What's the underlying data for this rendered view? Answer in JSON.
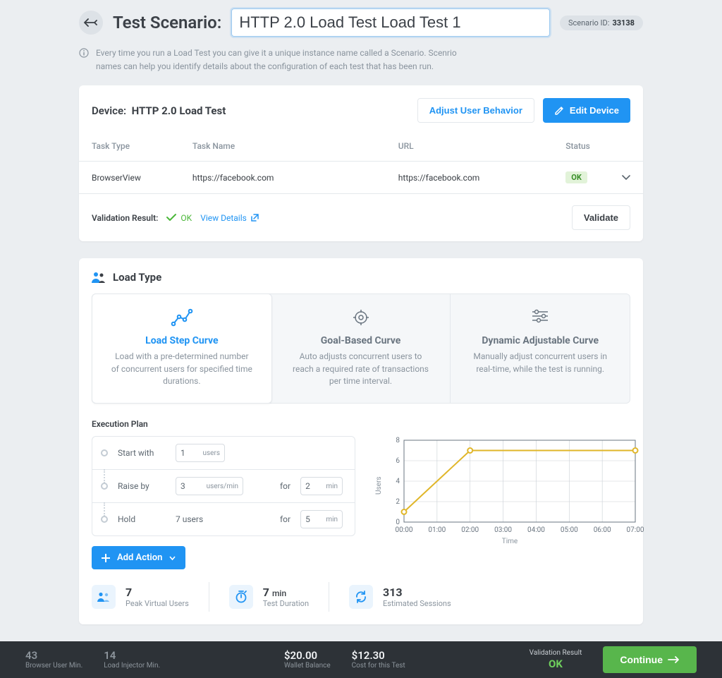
{
  "header": {
    "title_label": "Test Scenario:",
    "input_value": "HTTP 2.0 Load Test Load Test 1",
    "scenario_id_label": "Scenario ID:",
    "scenario_id": "33138",
    "info_text": "Every time you run a Load Test you can give it a unique instance name called a Scenario. Scenrio names can help you identify details about the configuration of each test that has been run."
  },
  "device_card": {
    "device_label": "Device:",
    "device_name": "HTTP 2.0 Load Test",
    "adjust_btn": "Adjust User Behavior",
    "edit_btn": "Edit Device",
    "columns": {
      "type": "Task Type",
      "name": "Task Name",
      "url": "URL",
      "status": "Status"
    },
    "row": {
      "type": "BrowserView",
      "name": "https://facebook.com",
      "url": "https://facebook.com",
      "status": "OK"
    },
    "validation_label": "Validation Result:",
    "validation_ok": "OK",
    "view_details": "View Details",
    "validate_btn": "Validate"
  },
  "load_type": {
    "title": "Load Type",
    "options": [
      {
        "t": "Load Step Curve",
        "d": "Load with a pre-determined number of concurrent users for specified time durations."
      },
      {
        "t": "Goal-Based Curve",
        "d": "Auto adjusts concurrent users to reach a required rate of transactions per time interval."
      },
      {
        "t": "Dynamic Adjustable Curve",
        "d": "Manually adjust concurrent users in real-time, while the test is running."
      }
    ],
    "exec_label": "Execution Plan",
    "steps": {
      "start_label": "Start with",
      "start_value": "1",
      "start_unit": "users",
      "raise_label": "Raise by",
      "raise_value": "3",
      "raise_unit": "users/min",
      "for_label": "for",
      "raise_for_value": "2",
      "raise_for_unit": "min",
      "hold_label": "Hold",
      "hold_value": "7 users",
      "hold_for_value": "5",
      "hold_for_unit": "min"
    },
    "add_action": "Add Action"
  },
  "chart": {
    "ylabel": "Users",
    "xlabel": "Time",
    "yticks": [
      "0",
      "2",
      "4",
      "6",
      "8"
    ],
    "xticks": [
      "00:00",
      "01:00",
      "02:00",
      "03:00",
      "04:00",
      "05:00",
      "06:00",
      "07:00"
    ],
    "ylim": [
      0,
      8
    ],
    "xlim": [
      0,
      7
    ],
    "points": [
      [
        0,
        1
      ],
      [
        2,
        7
      ],
      [
        7,
        7
      ]
    ],
    "line_color": "#e0b629",
    "marker_fill": "#ffffff",
    "marker_stroke": "#e0b629",
    "grid_color": "#c9cfd5",
    "axis_color": "#6a7580",
    "bg": "#ffffff",
    "label_fontsize": 10
  },
  "stats": {
    "peak_v": "7",
    "peak_l": "Peak Virtual Users",
    "dur_v": "7",
    "dur_unit": "min",
    "dur_l": "Test Duration",
    "sess_v": "313",
    "sess_l": "Estimated Sessions"
  },
  "footer": {
    "bu_v": "43",
    "bu_l": "Browser User Min.",
    "li_v": "14",
    "li_l": "Load Injector Min.",
    "wallet_v": "$20.00",
    "wallet_l": "Wallet Balance",
    "cost_v": "$12.30",
    "cost_l": "Cost for this Test",
    "val_label": "Validation Result",
    "val_v": "OK",
    "continue": "Continue"
  }
}
